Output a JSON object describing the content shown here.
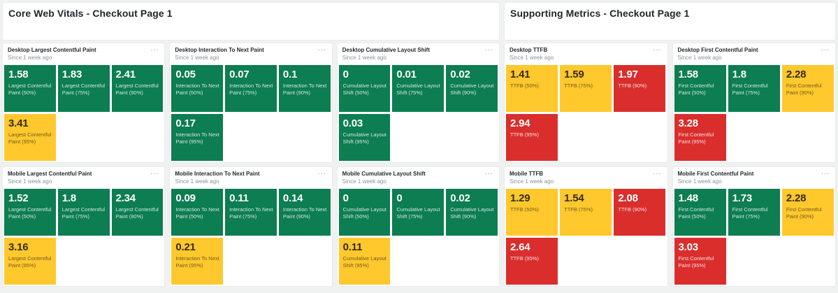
{
  "colors": {
    "good": "#0d7d52",
    "warn": "#ffc82d",
    "bad": "#d92e2c"
  },
  "panel_menu_icon": "···",
  "sections": [
    {
      "title": "Core Web Vitals - Checkout Page 1",
      "panels": [
        {
          "title": "Desktop Largest Contentful Paint",
          "subtitle": "Since 1 week ago",
          "tiles": [
            {
              "value": "1.58",
              "label": "Largest Contentful Paint (50%)",
              "status": "good"
            },
            {
              "value": "1.83",
              "label": "Largest Contentful Paint (75%)",
              "status": "good"
            },
            {
              "value": "2.41",
              "label": "Largest Contentful Paint (90%)",
              "status": "good"
            },
            {
              "value": "3.41",
              "label": "Largest Contentful Paint (95%)",
              "status": "warn"
            }
          ]
        },
        {
          "title": "Desktop Interaction To Next Paint",
          "subtitle": "Since 1 week ago",
          "tiles": [
            {
              "value": "0.05",
              "label": "Interaction To Next Paint (50%)",
              "status": "good"
            },
            {
              "value": "0.07",
              "label": "Interaction To Next Paint (75%)",
              "status": "good"
            },
            {
              "value": "0.1",
              "label": "Interaction To Next Paint (90%)",
              "status": "good"
            },
            {
              "value": "0.17",
              "label": "Interaction To Next Paint (95%)",
              "status": "good"
            }
          ]
        },
        {
          "title": "Desktop Cumulative Layout Shift",
          "subtitle": "Since 1 week ago",
          "tiles": [
            {
              "value": "0",
              "label": "Cumulative Layout Shift (50%)",
              "status": "good"
            },
            {
              "value": "0.01",
              "label": "Cumulative Layout Shift (75%)",
              "status": "good"
            },
            {
              "value": "0.02",
              "label": "Cumulative Layout Shift (90%)",
              "status": "good"
            },
            {
              "value": "0.03",
              "label": "Cumulative Layout Shift (95%)",
              "status": "good"
            }
          ]
        },
        {
          "title": "Mobile Largest Contentful Paint",
          "subtitle": "Since 1 week ago",
          "tiles": [
            {
              "value": "1.52",
              "label": "Largest Contentful Paint (50%)",
              "status": "good"
            },
            {
              "value": "1.8",
              "label": "Largest Contentful Paint (75%)",
              "status": "good"
            },
            {
              "value": "2.34",
              "label": "Largest Contentful Paint (90%)",
              "status": "good"
            },
            {
              "value": "3.16",
              "label": "Largest Contentful Paint (95%)",
              "status": "warn"
            }
          ]
        },
        {
          "title": "Mobile Interaction To Next Paint",
          "subtitle": "Since 1 week ago",
          "tiles": [
            {
              "value": "0.09",
              "label": "Interaction To Next Paint (50%)",
              "status": "good"
            },
            {
              "value": "0.11",
              "label": "Interaction To Next Paint (75%)",
              "status": "good"
            },
            {
              "value": "0.14",
              "label": "Interaction To Next Paint (90%)",
              "status": "good"
            },
            {
              "value": "0.21",
              "label": "Interaction To Next Paint (95%)",
              "status": "warn"
            }
          ]
        },
        {
          "title": "Mobile Cumulative Layout Shift",
          "subtitle": "Since 1 week ago",
          "tiles": [
            {
              "value": "0",
              "label": "Cumulative Layout Shift (50%)",
              "status": "good"
            },
            {
              "value": "0",
              "label": "Cumulative Layout Shift (75%)",
              "status": "good"
            },
            {
              "value": "0.02",
              "label": "Cumulative Layout Shift (90%)",
              "status": "good"
            },
            {
              "value": "0.11",
              "label": "Cumulative Layout Shift (95%)",
              "status": "warn"
            }
          ]
        }
      ]
    },
    {
      "title": "Supporting Metrics - Checkout Page 1",
      "panels": [
        {
          "title": "Desktop TTFB",
          "subtitle": "Since 1 week ago",
          "tiles": [
            {
              "value": "1.41",
              "label": "TTFB (50%)",
              "status": "warn"
            },
            {
              "value": "1.59",
              "label": "TTFB (75%)",
              "status": "warn"
            },
            {
              "value": "1.97",
              "label": "TTFB (90%)",
              "status": "bad"
            },
            {
              "value": "2.94",
              "label": "TTFB (95%)",
              "status": "bad"
            }
          ]
        },
        {
          "title": "Desktop First Contentful Paint",
          "subtitle": "Since 1 week ago",
          "tiles": [
            {
              "value": "1.58",
              "label": "First Contentful Paint (50%)",
              "status": "good"
            },
            {
              "value": "1.8",
              "label": "First Contentful Paint (75%)",
              "status": "good"
            },
            {
              "value": "2.28",
              "label": "First Contentful Paint (90%)",
              "status": "warn"
            },
            {
              "value": "3.28",
              "label": "First Contentful Paint (95%)",
              "status": "bad"
            }
          ]
        },
        {
          "title": "Mobile TTFB",
          "subtitle": "Since 1 week ago",
          "tiles": [
            {
              "value": "1.29",
              "label": "TTFB (50%)",
              "status": "warn"
            },
            {
              "value": "1.54",
              "label": "TTFB (75%)",
              "status": "warn"
            },
            {
              "value": "2.08",
              "label": "TTFB (90%)",
              "status": "bad"
            },
            {
              "value": "2.64",
              "label": "TTFB (95%)",
              "status": "bad"
            }
          ]
        },
        {
          "title": "Mobile First Contentful Paint",
          "subtitle": "Since 1 week ago",
          "tiles": [
            {
              "value": "1.48",
              "label": "First Contentful Paint (50%)",
              "status": "good"
            },
            {
              "value": "1.73",
              "label": "First Contentful Paint (75%)",
              "status": "good"
            },
            {
              "value": "2.28",
              "label": "First Contentful Paint (90%)",
              "status": "warn"
            },
            {
              "value": "3.03",
              "label": "First Contentful Paint (95%)",
              "status": "bad"
            }
          ]
        }
      ]
    }
  ]
}
